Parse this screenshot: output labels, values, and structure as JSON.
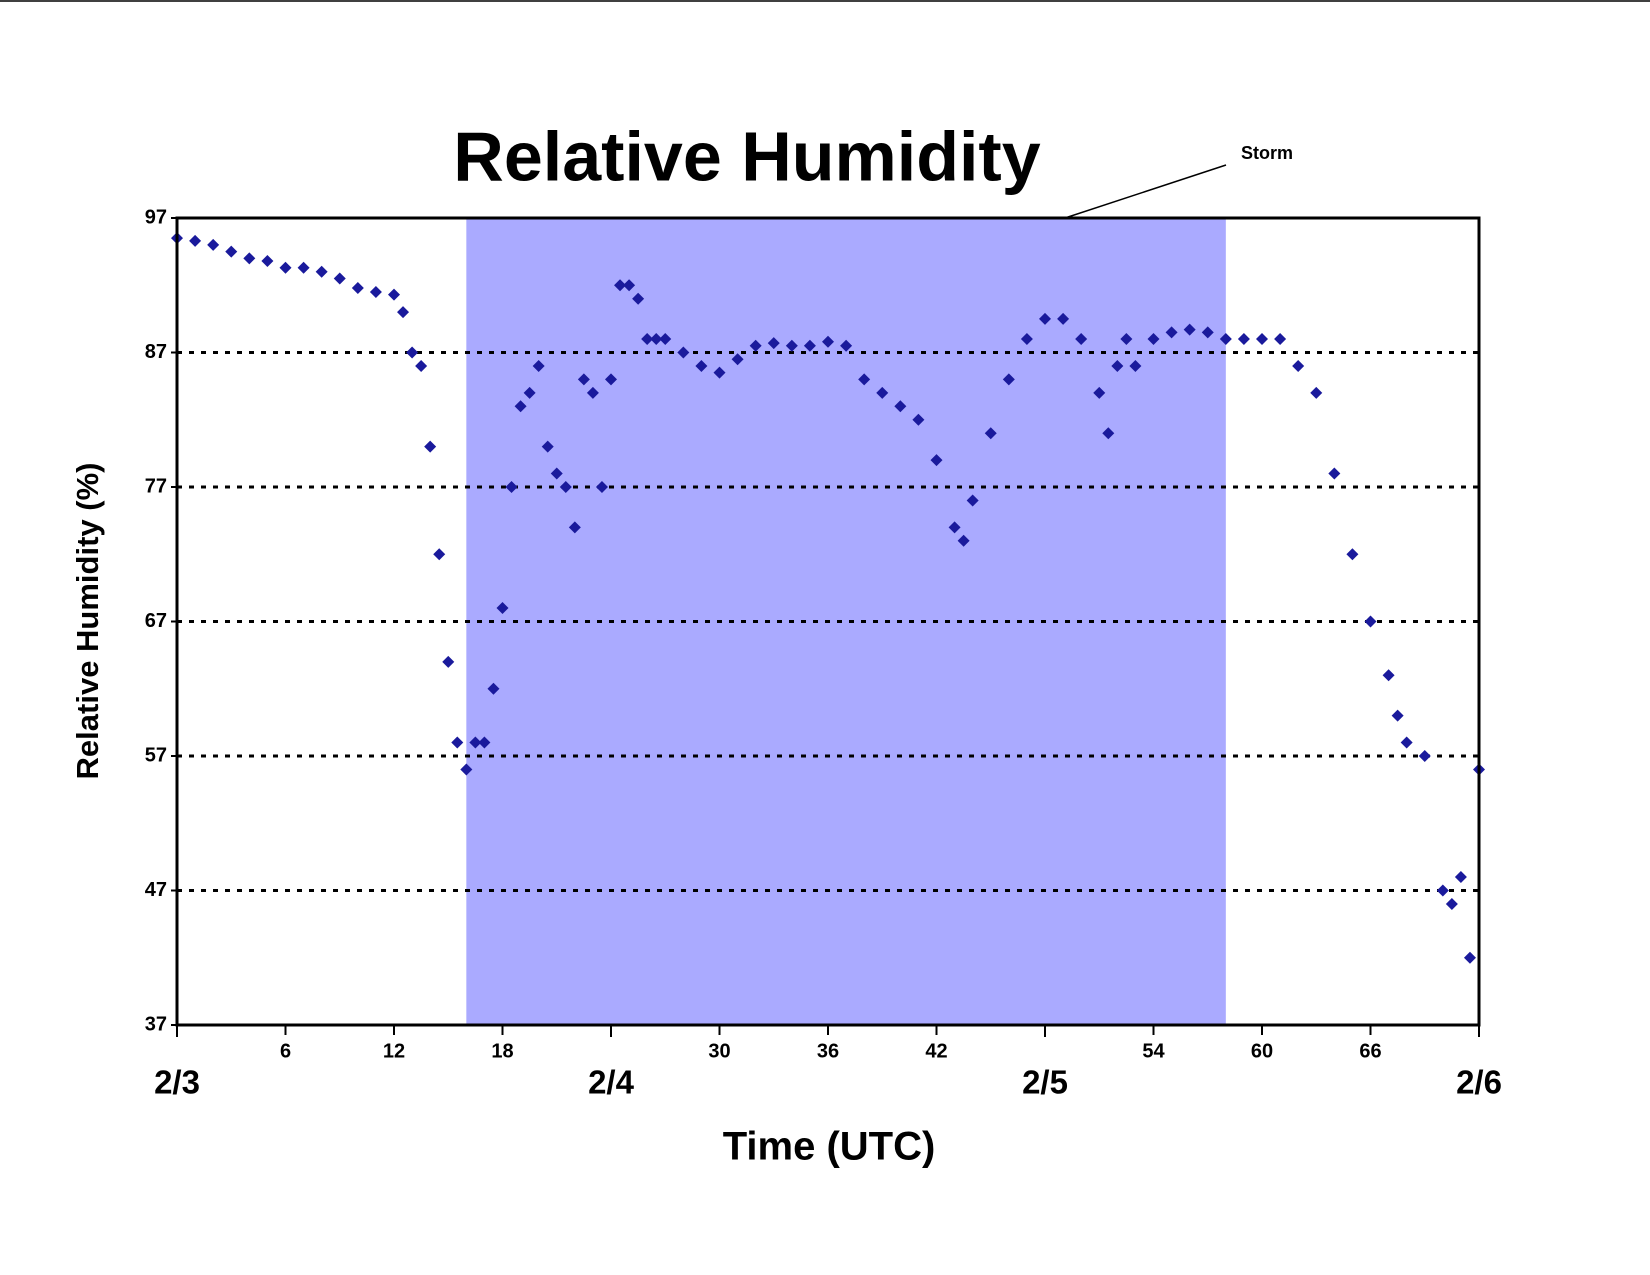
{
  "chart_data": {
    "type": "scatter",
    "title": "Relative Humidity",
    "xlabel": "Time (UTC)",
    "ylabel": "Relative Humidity (%)",
    "xlim": [
      0,
      72
    ],
    "ylim": [
      37,
      97
    ],
    "yticks": [
      37,
      47,
      57,
      67,
      77,
      87,
      97
    ],
    "xticks": [
      6,
      12,
      18,
      30,
      36,
      42,
      54,
      60,
      66
    ],
    "xdates": [
      {
        "value": 0,
        "label": "2/3"
      },
      {
        "value": 24,
        "label": "2/4"
      },
      {
        "value": 48,
        "label": "2/5"
      },
      {
        "value": 72,
        "label": "2/6"
      }
    ],
    "grid": true,
    "spans": [
      {
        "label": "Storm",
        "x": [
          16,
          58
        ],
        "color": "#aaaaff"
      }
    ],
    "series": [
      {
        "name": "Relative Humidity",
        "color": "#1a1a9c",
        "x": [
          0,
          1,
          2,
          3,
          4,
          5,
          6,
          7,
          8,
          9,
          10,
          11,
          12,
          12.5,
          13,
          13.5,
          14,
          14.5,
          15,
          15.5,
          16,
          16.5,
          17,
          17.5,
          18,
          18.5,
          19,
          19.5,
          20,
          20.5,
          21,
          21.5,
          22,
          22.5,
          23,
          23.5,
          24,
          24.5,
          25,
          25.5,
          26,
          26.5,
          27,
          28,
          29,
          30,
          31,
          32,
          33,
          34,
          35,
          36,
          37,
          38,
          39,
          40,
          41,
          42,
          43,
          43.5,
          44,
          45,
          46,
          47,
          48,
          49,
          50,
          51,
          51.5,
          52,
          52.5,
          53,
          54,
          55,
          56,
          57,
          58,
          59,
          60,
          61,
          62,
          63,
          64,
          65,
          66,
          67,
          67.5,
          68,
          69,
          70,
          70.5,
          71,
          71.5,
          72
        ],
        "values": [
          95.5,
          95.3,
          95,
          94.5,
          94,
          93.8,
          93.3,
          93.3,
          93,
          92.5,
          91.8,
          91.5,
          91.3,
          90,
          87,
          86,
          80,
          72,
          64,
          58,
          56,
          58,
          58,
          62,
          68,
          77,
          83,
          84,
          86,
          80,
          78,
          77,
          74,
          85,
          84,
          77,
          85,
          92,
          92,
          91,
          88,
          88,
          88,
          87,
          86,
          85.5,
          86.5,
          87.5,
          87.7,
          87.5,
          87.5,
          87.8,
          87.5,
          85,
          84,
          83,
          82,
          79,
          74,
          73,
          76,
          81,
          85,
          88,
          89.5,
          89.5,
          88,
          84,
          81,
          86,
          88,
          86,
          88,
          88.5,
          88.7,
          88.5,
          88,
          88,
          88,
          88,
          86,
          84,
          78,
          72,
          67,
          63,
          60,
          58,
          57,
          47,
          46,
          48,
          42,
          56
        ]
      }
    ]
  }
}
